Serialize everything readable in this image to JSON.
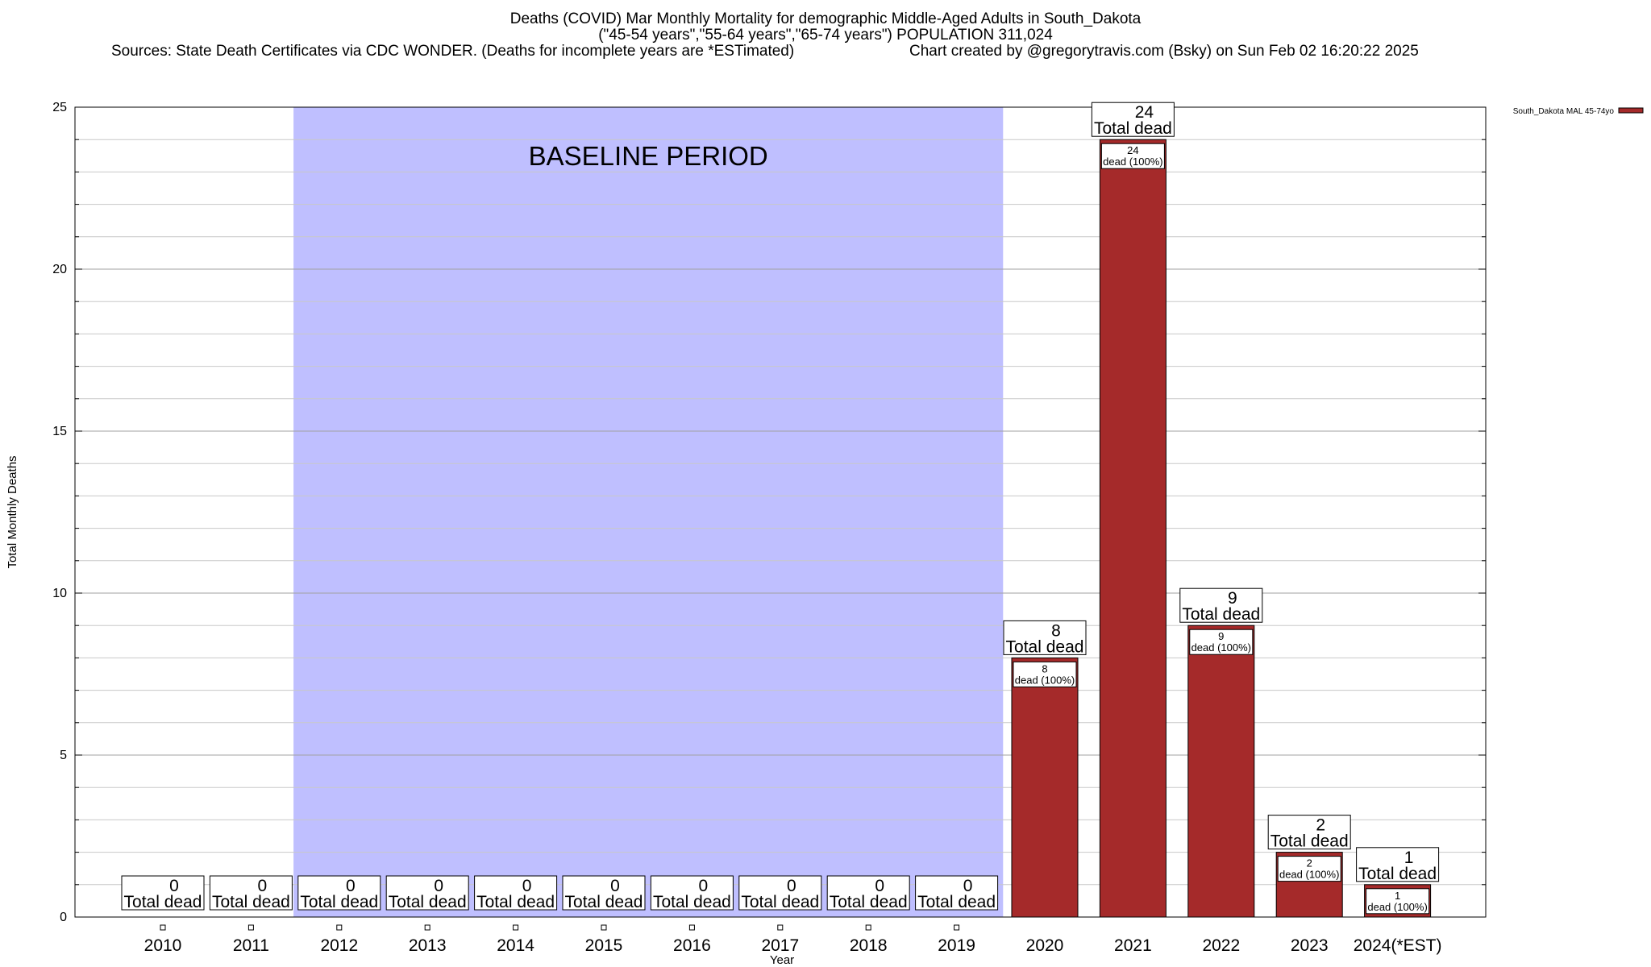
{
  "header": {
    "line1": "Deaths (COVID) Mar Monthly Mortality for demographic Middle-Aged Adults in South_Dakota",
    "line2": "(\"45-54 years\",\"55-64 years\",\"65-74 years\") POPULATION 311,024",
    "line3_left": "Sources: State Death Certificates via CDC WONDER. (Deaths for incomplete years are *ESTimated)",
    "line3_right": "Chart created by @gregorytravis.com (Bsky) on Sun Feb 02 16:20:22 2025"
  },
  "chart_data": {
    "type": "bar",
    "categories": [
      "2010",
      "2011",
      "2012",
      "2013",
      "2014",
      "2015",
      "2016",
      "2017",
      "2018",
      "2019",
      "2020",
      "2021",
      "2022",
      "2023",
      "2024(*EST)"
    ],
    "series": [
      {
        "name": "South_Dakota MAL 45-74yo",
        "values": [
          0,
          0,
          0,
          0,
          0,
          0,
          0,
          0,
          0,
          0,
          8,
          24,
          9,
          2,
          1
        ],
        "color": "#a52a2a"
      }
    ],
    "xlabel": "Year",
    "ylabel": "Total Monthly Deaths",
    "ylim": [
      0,
      25
    ],
    "yticks": [
      0,
      5,
      10,
      15,
      20,
      25
    ],
    "grid": true,
    "legend_position": "top-right",
    "total_label": "Total dead",
    "bar_label_suffix": "dead (100%)",
    "baseline": {
      "label": "BASELINE PERIOD",
      "start_category": "2012",
      "end_category": "2019",
      "color": "#bfbfff"
    }
  }
}
